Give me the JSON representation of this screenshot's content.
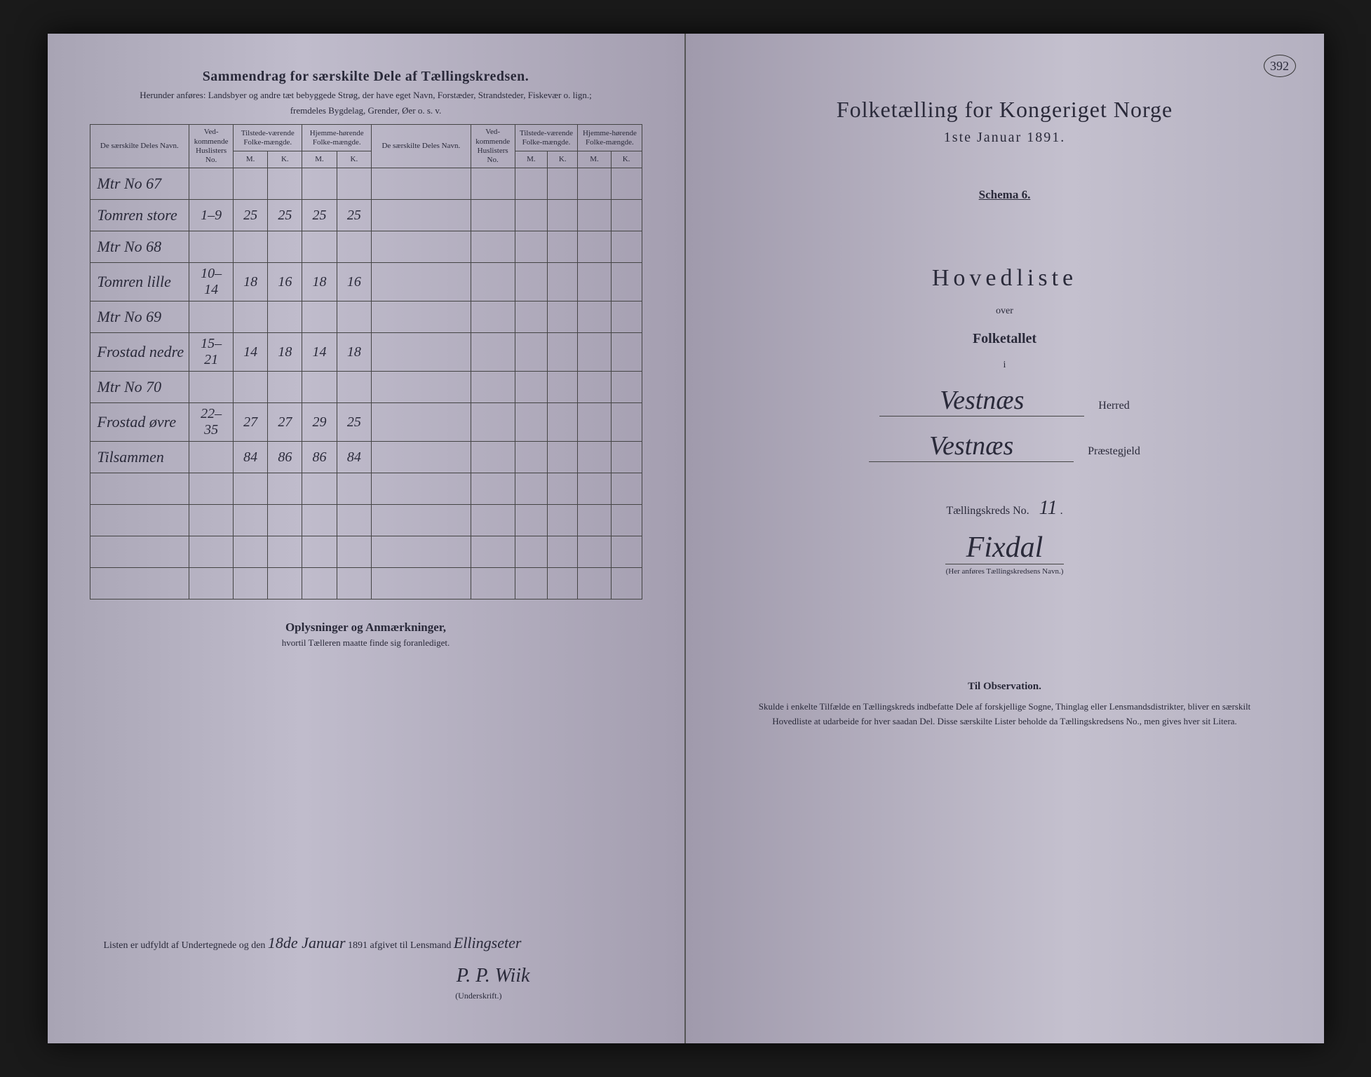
{
  "left": {
    "title": "Sammendrag for særskilte Dele af Tællingskredsen.",
    "subtitle1": "Herunder anføres: Landsbyer og andre tæt bebyggede Strøg, der have eget Navn, Forstæder, Strandsteder, Fiskevær o. lign.;",
    "subtitle2": "fremdeles Bygdelag, Grender, Øer o. s. v.",
    "headers": {
      "name": "De særskilte Deles Navn.",
      "huslister": "Ved-kommende Huslisters No.",
      "tilstede": "Tilstede-værende Folke-mængde.",
      "hjemme": "Hjemme-hørende Folke-mængde.",
      "m": "M.",
      "k": "K."
    },
    "rows": [
      {
        "name": "Mtr No 67",
        "hus": "",
        "tm": "",
        "tk": "",
        "hm": "",
        "hk": ""
      },
      {
        "name": "Tomren store",
        "hus": "1–9",
        "tm": "25",
        "tk": "25",
        "hm": "25",
        "hk": "25"
      },
      {
        "name": "Mtr No 68",
        "hus": "",
        "tm": "",
        "tk": "",
        "hm": "",
        "hk": ""
      },
      {
        "name": "Tomren lille",
        "hus": "10–14",
        "tm": "18",
        "tk": "16",
        "hm": "18",
        "hk": "16"
      },
      {
        "name": "Mtr No 69",
        "hus": "",
        "tm": "",
        "tk": "",
        "hm": "",
        "hk": ""
      },
      {
        "name": "Frostad nedre",
        "hus": "15–21",
        "tm": "14",
        "tk": "18",
        "hm": "14",
        "hk": "18"
      },
      {
        "name": "Mtr No 70",
        "hus": "",
        "tm": "",
        "tk": "",
        "hm": "",
        "hk": ""
      },
      {
        "name": "Frostad øvre",
        "hus": "22–35",
        "tm": "27",
        "tk": "27",
        "hm": "29",
        "hk": "25"
      },
      {
        "name": "Tilsammen",
        "hus": "",
        "tm": "84",
        "tk": "86",
        "hm": "86",
        "hk": "84"
      },
      {
        "name": "",
        "hus": "",
        "tm": "",
        "tk": "",
        "hm": "",
        "hk": ""
      },
      {
        "name": "",
        "hus": "",
        "tm": "",
        "tk": "",
        "hm": "",
        "hk": ""
      },
      {
        "name": "",
        "hus": "",
        "tm": "",
        "tk": "",
        "hm": "",
        "hk": ""
      },
      {
        "name": "",
        "hus": "",
        "tm": "",
        "tk": "",
        "hm": "",
        "hk": ""
      }
    ],
    "remarks_title": "Oplysninger og Anmærkninger,",
    "remarks_sub": "hvortil Tælleren maatte finde sig foranlediget.",
    "footer_pre": "Listen er udfyldt af Undertegnede og den",
    "footer_date": "18de Januar",
    "footer_year": "1891 afgivet til Lensmand",
    "footer_lensmand": "Ellingseter",
    "signature": "P. P. Wiik",
    "sig_label": "(Underskrift.)"
  },
  "right": {
    "page_number": "392",
    "title": "Folketælling for Kongeriget Norge",
    "date": "1ste Januar 1891.",
    "schema": "Schema 6.",
    "hovedliste": "Hovedliste",
    "over": "over",
    "folketallet": "Folketallet",
    "i": "i",
    "herred_value": "Vestnæs",
    "herred_label": "Herred",
    "praeste_value": "Vestnæs",
    "praeste_label": "Præstegjeld",
    "kreds_label": "Tællingskreds No.",
    "kreds_no": "11",
    "kreds_name": "Fixdal",
    "kreds_caption": "(Her anføres Tællingskredsens Navn.)",
    "obs_title": "Til Observation.",
    "obs_body": "Skulde i enkelte Tilfælde en Tællingskreds indbefatte Dele af forskjellige Sogne, Thinglag eller Lensmandsdistrikter, bliver en særskilt Hovedliste at udarbeide for hver saadan Del. Disse særskilte Lister beholde da Tællingskredsens No., men gives hver sit Litera."
  }
}
